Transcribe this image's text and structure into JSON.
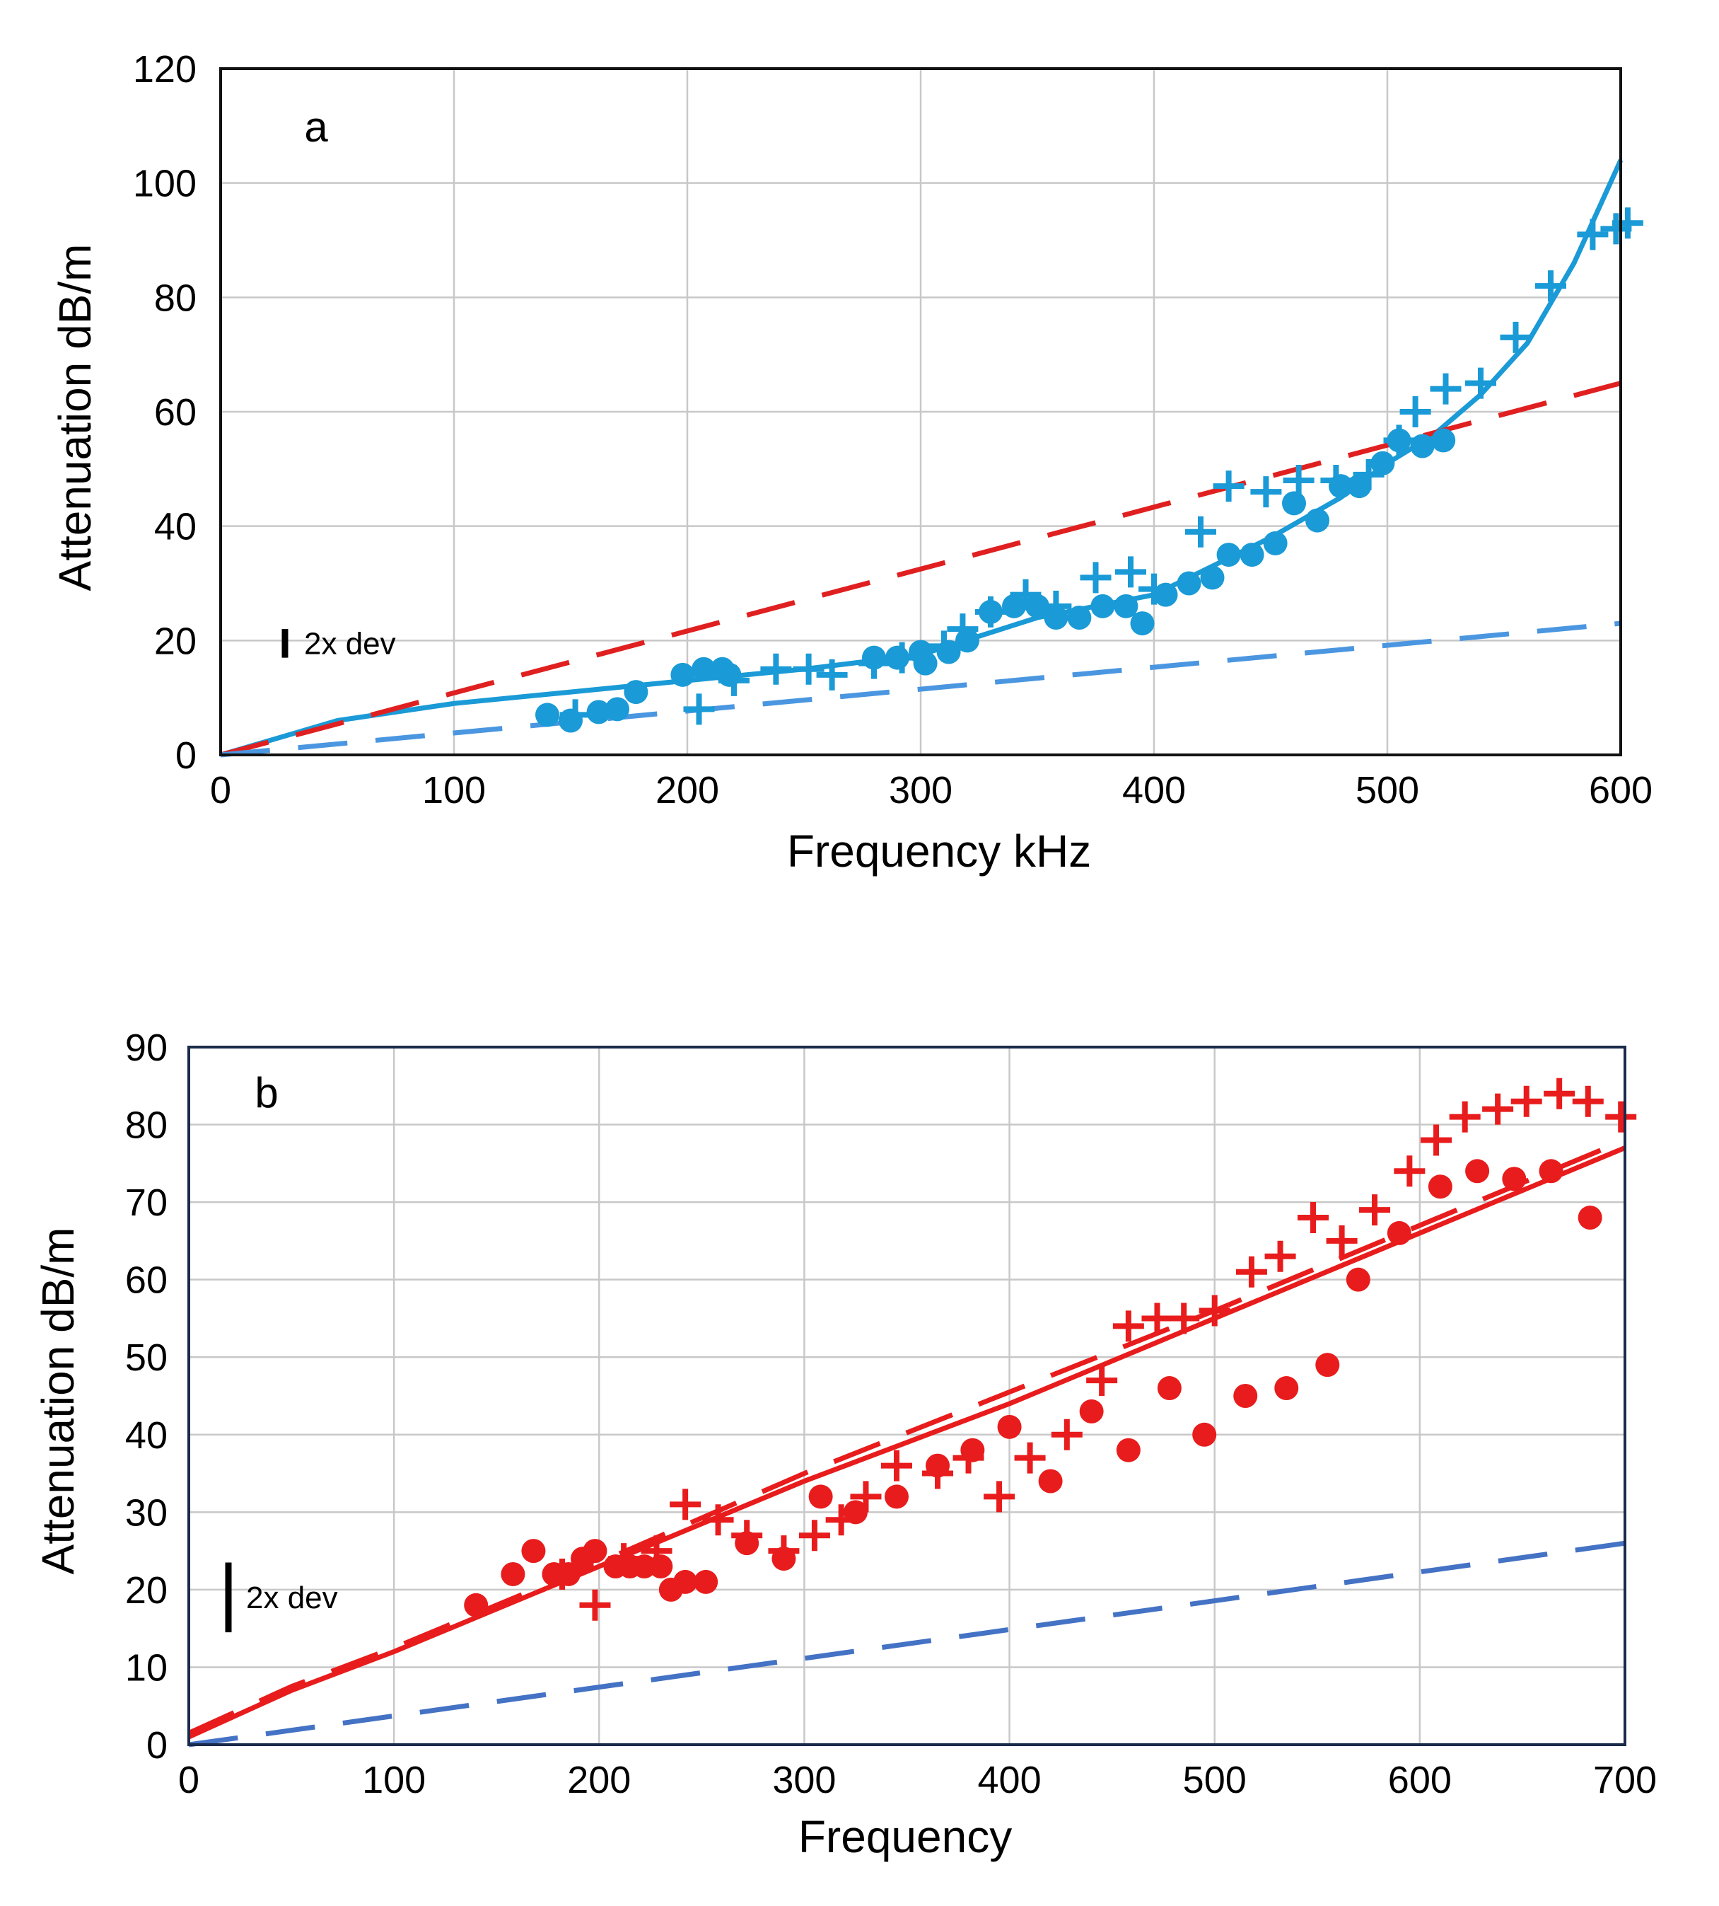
{
  "chart_data": [
    {
      "type": "scatter",
      "panel_label": "a",
      "xlabel": "Frequency  kHz",
      "ylabel": "Attenuation  dB/m",
      "xlim": [
        0,
        600
      ],
      "ylim": [
        0,
        120
      ],
      "xticks": [
        0,
        100,
        200,
        300,
        400,
        500,
        600
      ],
      "yticks": [
        0,
        20,
        40,
        60,
        80,
        100,
        120
      ],
      "grid": true,
      "annotation": "2x dev",
      "annotation_bar": [
        22,
        17
      ],
      "series": [
        {
          "style": "circles",
          "color": "#1a9ad6",
          "points": [
            [
              140,
              7
            ],
            [
              150,
              6
            ],
            [
              162,
              7.5
            ],
            [
              170,
              8
            ],
            [
              178,
              11
            ],
            [
              198,
              14
            ],
            [
              207,
              15
            ],
            [
              215,
              15
            ],
            [
              218,
              14
            ],
            [
              280,
              17
            ],
            [
              290,
              17
            ],
            [
              300,
              18
            ],
            [
              302,
              16
            ],
            [
              312,
              18
            ],
            [
              320,
              20
            ],
            [
              330,
              25
            ],
            [
              340,
              26
            ],
            [
              350,
              26
            ],
            [
              358,
              24
            ],
            [
              368,
              24
            ],
            [
              378,
              26
            ],
            [
              388,
              26
            ],
            [
              395,
              23
            ],
            [
              405,
              28
            ],
            [
              415,
              30
            ],
            [
              425,
              31
            ],
            [
              432,
              35
            ],
            [
              442,
              35
            ],
            [
              452,
              37
            ],
            [
              460,
              44
            ],
            [
              470,
              41
            ],
            [
              480,
              47
            ],
            [
              488,
              47
            ],
            [
              498,
              51
            ],
            [
              505,
              55
            ],
            [
              515,
              54
            ],
            [
              524,
              55
            ]
          ]
        },
        {
          "style": "crosses",
          "color": "#1a9ad6",
          "points": [
            [
              152,
              7
            ],
            [
              205,
              8
            ],
            [
              220,
              13
            ],
            [
              238,
              15
            ],
            [
              252,
              15
            ],
            [
              262,
              14
            ],
            [
              280,
              16
            ],
            [
              292,
              17
            ],
            [
              310,
              19
            ],
            [
              318,
              22
            ],
            [
              330,
              25
            ],
            [
              345,
              28
            ],
            [
              358,
              26
            ],
            [
              375,
              31
            ],
            [
              390,
              32
            ],
            [
              400,
              29
            ],
            [
              420,
              39
            ],
            [
              432,
              47
            ],
            [
              448,
              46
            ],
            [
              462,
              48
            ],
            [
              478,
              48
            ],
            [
              492,
              49
            ],
            [
              505,
              55
            ],
            [
              512,
              60
            ],
            [
              525,
              64
            ],
            [
              540,
              65
            ],
            [
              555,
              73
            ],
            [
              570,
              82
            ],
            [
              588,
              91
            ],
            [
              598,
              92
            ],
            [
              603,
              93
            ]
          ]
        },
        {
          "style": "solid",
          "color": "#1a9ad6",
          "points": [
            [
              0,
              0
            ],
            [
              50,
              6
            ],
            [
              100,
              9
            ],
            [
              150,
              11
            ],
            [
              200,
              13
            ],
            [
              250,
              15
            ],
            [
              300,
              17.5
            ],
            [
              350,
              24
            ],
            [
              400,
              28
            ],
            [
              450,
              38
            ],
            [
              480,
              45
            ],
            [
              500,
              51
            ],
            [
              520,
              56
            ],
            [
              540,
              63
            ],
            [
              560,
              72
            ],
            [
              580,
              86
            ],
            [
              600,
              104
            ]
          ]
        },
        {
          "style": "dashed",
          "color": "#e02020",
          "points": [
            [
              0,
              0
            ],
            [
              600,
              65
            ]
          ]
        },
        {
          "style": "dashed",
          "color": "#4a96e0",
          "points": [
            [
              0,
              0
            ],
            [
              600,
              23
            ]
          ]
        }
      ]
    },
    {
      "type": "scatter",
      "panel_label": "b",
      "xlabel": "Frequency",
      "ylabel": "Attenuation  dB/m",
      "xlim": [
        0,
        700
      ],
      "ylim": [
        0,
        90
      ],
      "xticks": [
        0,
        100,
        200,
        300,
        400,
        500,
        600,
        700
      ],
      "yticks": [
        0,
        10,
        20,
        30,
        40,
        50,
        60,
        70,
        80,
        90
      ],
      "grid": true,
      "annotation": "2x dev",
      "annotation_bar": [
        23.5,
        14.5
      ],
      "series": [
        {
          "style": "circles",
          "color": "#e81c1c",
          "points": [
            [
              140,
              18
            ],
            [
              158,
              22
            ],
            [
              168,
              25
            ],
            [
              178,
              22
            ],
            [
              185,
              22
            ],
            [
              192,
              24
            ],
            [
              198,
              25
            ],
            [
              208,
              23
            ],
            [
              215,
              23
            ],
            [
              222,
              23
            ],
            [
              230,
              23
            ],
            [
              235,
              20
            ],
            [
              242,
              21
            ],
            [
              252,
              21
            ],
            [
              272,
              26
            ],
            [
              290,
              24
            ],
            [
              308,
              32
            ],
            [
              325,
              30
            ],
            [
              345,
              32
            ],
            [
              365,
              36
            ],
            [
              382,
              38
            ],
            [
              400,
              41
            ],
            [
              420,
              34
            ],
            [
              440,
              43
            ],
            [
              458,
              38
            ],
            [
              478,
              46
            ],
            [
              495,
              40
            ],
            [
              515,
              45
            ],
            [
              535,
              46
            ],
            [
              555,
              49
            ],
            [
              570,
              60
            ],
            [
              590,
              66
            ],
            [
              610,
              72
            ],
            [
              628,
              74
            ],
            [
              646,
              73
            ],
            [
              664,
              74
            ],
            [
              683,
              68
            ]
          ]
        },
        {
          "style": "crosses",
          "color": "#e81c1c",
          "points": [
            [
              182,
              22
            ],
            [
              198,
              18
            ],
            [
              212,
              24
            ],
            [
              228,
              25
            ],
            [
              242,
              31
            ],
            [
              258,
              29
            ],
            [
              272,
              27
            ],
            [
              290,
              25
            ],
            [
              305,
              27
            ],
            [
              318,
              29
            ],
            [
              330,
              32
            ],
            [
              345,
              36
            ],
            [
              365,
              35
            ],
            [
              380,
              37
            ],
            [
              395,
              32
            ],
            [
              410,
              37
            ],
            [
              428,
              40
            ],
            [
              445,
              47
            ],
            [
              458,
              54
            ],
            [
              472,
              55
            ],
            [
              485,
              55
            ],
            [
              500,
              56
            ],
            [
              518,
              61
            ],
            [
              532,
              63
            ],
            [
              548,
              68
            ],
            [
              562,
              65
            ],
            [
              578,
              69
            ],
            [
              595,
              74
            ],
            [
              608,
              78
            ],
            [
              622,
              81
            ],
            [
              638,
              82
            ],
            [
              652,
              83
            ],
            [
              668,
              84
            ],
            [
              682,
              83
            ],
            [
              698,
              81
            ]
          ]
        },
        {
          "style": "solid",
          "color": "#e81c1c",
          "points": [
            [
              0,
              1
            ],
            [
              50,
              7
            ],
            [
              100,
              12
            ],
            [
              200,
              23
            ],
            [
              300,
              34
            ],
            [
              400,
              44
            ],
            [
              500,
              55
            ],
            [
              600,
              66
            ],
            [
              700,
              77
            ]
          ]
        },
        {
          "style": "dashed",
          "color": "#e81c1c",
          "points": [
            [
              0,
              1.5
            ],
            [
              50,
              7.5
            ],
            [
              100,
              12.5
            ],
            [
              200,
              23.5
            ],
            [
              300,
              35
            ],
            [
              400,
              45.5
            ],
            [
              500,
              56
            ],
            [
              600,
              67
            ],
            [
              700,
              78
            ]
          ]
        },
        {
          "style": "dashed",
          "color": "#4472c4",
          "points": [
            [
              0,
              0
            ],
            [
              700,
              26
            ]
          ]
        }
      ]
    }
  ]
}
